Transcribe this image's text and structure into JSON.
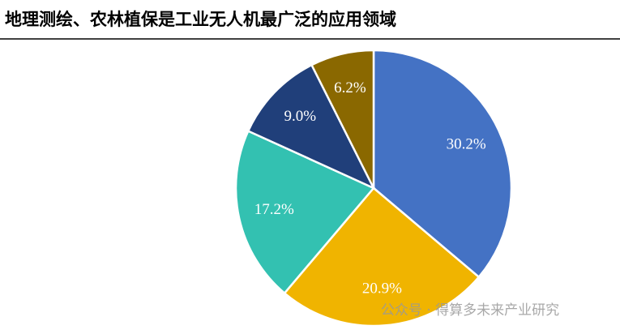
{
  "chart_data": {
    "type": "pie",
    "title": "地理测绘、农林植保是工业无人机最广泛的应用领域",
    "values": [
      30.2,
      20.9,
      17.2,
      9.0,
      6.2
    ],
    "value_labels": [
      "30.2%",
      "20.9%",
      "17.2%",
      "9.0%",
      "6.2%"
    ],
    "colors": [
      "#4472c4",
      "#f0b400",
      "#33c1b1",
      "#203f7a",
      "#8a6800"
    ],
    "watermark": "公众号 · 得算多未来产业研究"
  }
}
